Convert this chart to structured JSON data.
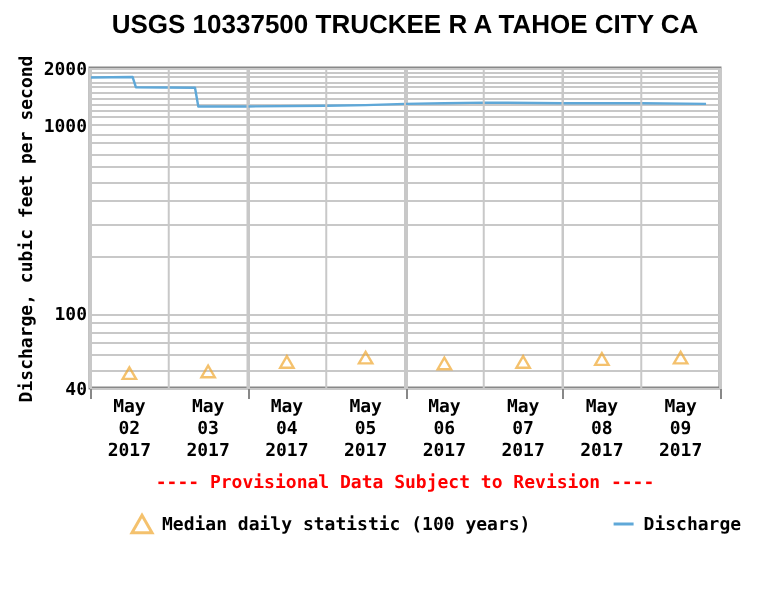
{
  "chart_data": {
    "type": "line",
    "title": "USGS 10337500 TRUCKEE R A TAHOE CITY CA",
    "ylabel": "Discharge, cubic feet per second",
    "annotations": [
      "---- Provisional Data Subject to Revision ----"
    ],
    "log": "y",
    "grid": true,
    "legend": "bottom",
    "xlim": [
      "2017-05-02T00:00",
      "2017-05-10T00:00"
    ],
    "xticks": [
      {
        "value": "2017-05-02T00:00",
        "label": null
      },
      {
        "value": "2017-05-02T12:00",
        "label": "May\n02\n2017"
      },
      {
        "value": "2017-05-03T00:00",
        "label": null
      },
      {
        "value": "2017-05-03T12:00",
        "label": "May\n03\n2017"
      },
      {
        "value": "2017-05-04T00:00",
        "label": null
      },
      {
        "value": "2017-05-04T12:00",
        "label": "May\n04\n2017"
      },
      {
        "value": "2017-05-05T00:00",
        "label": null
      },
      {
        "value": "2017-05-05T12:00",
        "label": "May\n05\n2017"
      },
      {
        "value": "2017-05-06T00:00",
        "label": null
      },
      {
        "value": "2017-05-06T12:00",
        "label": "May\n06\n2017"
      },
      {
        "value": "2017-05-07T00:00",
        "label": null
      },
      {
        "value": "2017-05-07T12:00",
        "label": "May\n07\n2017"
      },
      {
        "value": "2017-05-08T00:00",
        "label": null
      },
      {
        "value": "2017-05-08T12:00",
        "label": "May\n08\n2017"
      },
      {
        "value": "2017-05-09T00:00",
        "label": null
      },
      {
        "value": "2017-05-09T12:00",
        "label": "May\n09\n2017"
      },
      {
        "value": "2017-05-10T00:00",
        "label": null
      }
    ],
    "ylim": [
      40,
      2000
    ],
    "yticks": [
      40,
      {
        "value": 50,
        "label": null
      },
      {
        "value": 60,
        "label": null
      },
      {
        "value": 70,
        "label": null
      },
      {
        "value": 80,
        "label": null
      },
      {
        "value": 90,
        "label": null
      },
      100,
      {
        "value": 200,
        "label": null
      },
      {
        "value": 300,
        "label": null
      },
      {
        "value": 400,
        "label": null
      },
      {
        "value": 500,
        "label": null
      },
      {
        "value": 600,
        "label": null
      },
      {
        "value": 700,
        "label": null
      },
      {
        "value": 800,
        "label": null
      },
      {
        "value": 900,
        "label": null
      },
      1000,
      {
        "value": 1100,
        "label": null
      },
      {
        "value": 1200,
        "label": null
      },
      {
        "value": 1300,
        "label": null
      },
      {
        "value": 1400,
        "label": null
      },
      {
        "value": 1500,
        "label": null
      },
      {
        "value": 1600,
        "label": null
      },
      {
        "value": 1700,
        "label": null
      },
      {
        "value": 1800,
        "label": null
      },
      {
        "value": 1900,
        "label": null
      },
      2000
    ],
    "series": [
      {
        "name": "Median daily statistic (100 years)",
        "type": "scatter",
        "marker": "triangle",
        "color": "#f0a830",
        "x": [
          "2017-05-02T12:00",
          "2017-05-03T12:00",
          "2017-05-04T12:00",
          "2017-05-05T12:00",
          "2017-05-06T12:00",
          "2017-05-07T12:00",
          "2017-05-08T12:00",
          "2017-05-09T12:00"
        ],
        "values": [
          48,
          49,
          55,
          58,
          54,
          55,
          57,
          58
        ]
      },
      {
        "name": "Discharge",
        "type": "line",
        "marker": "none",
        "line_style": "solid",
        "color": "#5fa8d8",
        "x": [
          "2017-05-02T00:00",
          "2017-05-02T13:00",
          "2017-05-02T14:00",
          "2017-05-03T08:00",
          "2017-05-03T09:00",
          "2017-05-04T00:00",
          "2017-05-05T00:00",
          "2017-05-05T12:00",
          "2017-05-06T00:00",
          "2017-05-06T12:00",
          "2017-05-07T00:00",
          "2017-05-08T00:00",
          "2017-05-09T00:00",
          "2017-05-09T19:45"
        ],
        "values": [
          1780,
          1790,
          1580,
          1570,
          1250,
          1250,
          1260,
          1270,
          1290,
          1300,
          1310,
          1300,
          1300,
          1290
        ]
      }
    ]
  }
}
